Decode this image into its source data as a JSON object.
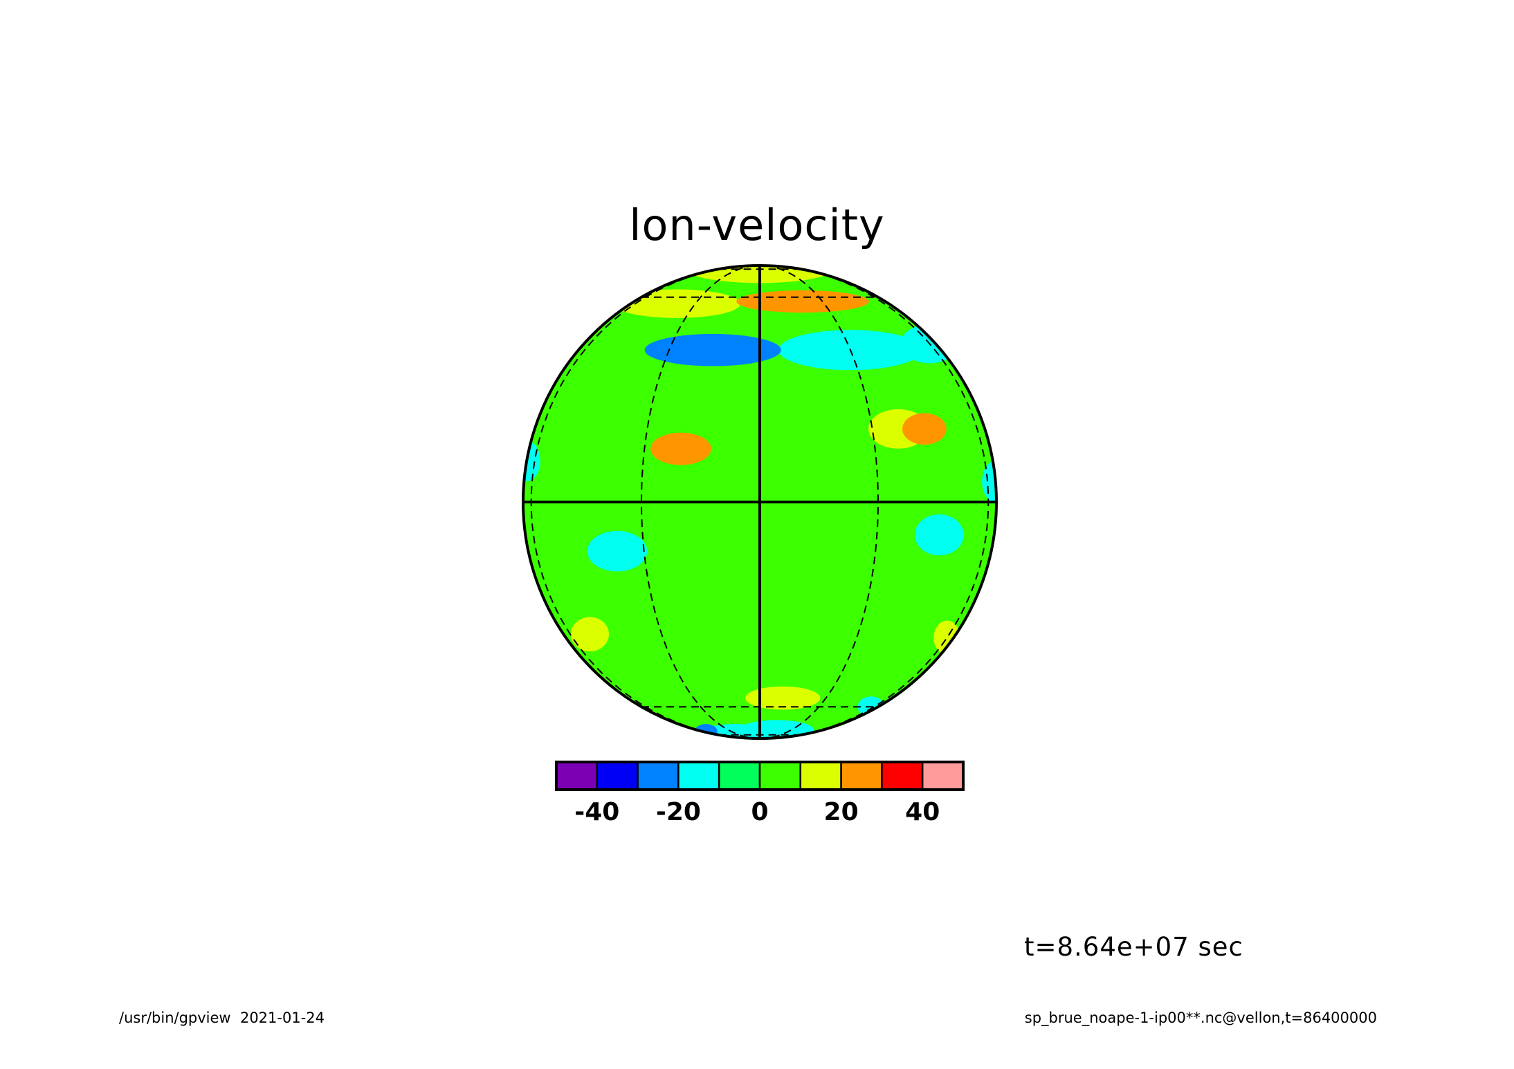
{
  "figure": {
    "title": "lon-velocity",
    "timestamp": "t=8.64e+07 sec",
    "footer_left": "/usr/bin/gpview  2021-01-24",
    "footer_right": "sp_brue_noape-1-ip00**.nc@vellon,t=86400000"
  },
  "chart_data": {
    "type": "heatmap",
    "projection": "orthographic",
    "title": "lon-velocity",
    "grid": true,
    "graticule": {
      "solid": [
        "equator",
        "central meridian"
      ],
      "dashed_latitudes_deg": [
        -60,
        60,
        80,
        -80
      ],
      "dashed_meridian_offsets_deg": [
        -75,
        -30,
        30,
        75
      ]
    },
    "colorbar": {
      "levels": [
        -50,
        -40,
        -30,
        -20,
        -10,
        0,
        10,
        20,
        30,
        40,
        50
      ],
      "colors": [
        "#7b00b3",
        "#0000f5",
        "#0082ff",
        "#00fff0",
        "#00ff5a",
        "#3cff00",
        "#dcff00",
        "#ff9600",
        "#ff0000",
        "#ff9b9b"
      ],
      "tick_labels": [
        "-40",
        "-20",
        "0",
        "20",
        "40"
      ],
      "tick_values": [
        -40,
        -20,
        0,
        20,
        40
      ]
    },
    "background_value": 5,
    "field_features": [
      {
        "lat": 58,
        "lon": 20,
        "value": 25,
        "shape": "band"
      },
      {
        "lat": 57,
        "lon": -40,
        "value": 15,
        "shape": "band"
      },
      {
        "lat": 82,
        "lon": 0,
        "value": 15,
        "shape": "cap"
      },
      {
        "lat": 40,
        "lon": -15,
        "value": -25,
        "shape": "band"
      },
      {
        "lat": 40,
        "lon": 30,
        "value": -15,
        "shape": "band"
      },
      {
        "lat": 42,
        "lon": 75,
        "value": -15,
        "shape": "band"
      },
      {
        "lat": 13,
        "lon": -20,
        "value": 25,
        "shape": "blob"
      },
      {
        "lat": 18,
        "lon": 38,
        "value": 15,
        "shape": "blob"
      },
      {
        "lat": 18,
        "lon": 47,
        "value": 25,
        "shape": "blob"
      },
      {
        "lat": -8,
        "lon": 50,
        "value": -15,
        "shape": "blob"
      },
      {
        "lat": -12,
        "lon": -38,
        "value": -15,
        "shape": "blob"
      },
      {
        "lat": -34,
        "lon": -60,
        "value": 15,
        "shape": "blob"
      },
      {
        "lat": -35,
        "lon": 75,
        "value": 15,
        "shape": "blob"
      },
      {
        "lat": -56,
        "lon": 10,
        "value": 15,
        "shape": "blob"
      },
      {
        "lat": -60,
        "lon": 70,
        "value": -15,
        "shape": "blob"
      },
      {
        "lat": -78,
        "lon": -30,
        "value": -15,
        "shape": "blob"
      },
      {
        "lat": -74,
        "lon": 15,
        "value": -15,
        "shape": "blob"
      },
      {
        "lat": -76,
        "lon": -70,
        "value": -25,
        "shape": "blob"
      },
      {
        "lat": 5,
        "lon": 88,
        "value": -15,
        "shape": "blob"
      },
      {
        "lat": 10,
        "lon": -88,
        "value": -15,
        "shape": "blob"
      },
      {
        "lat": -25,
        "lon": 0,
        "value": 5,
        "shape": "band"
      }
    ]
  }
}
